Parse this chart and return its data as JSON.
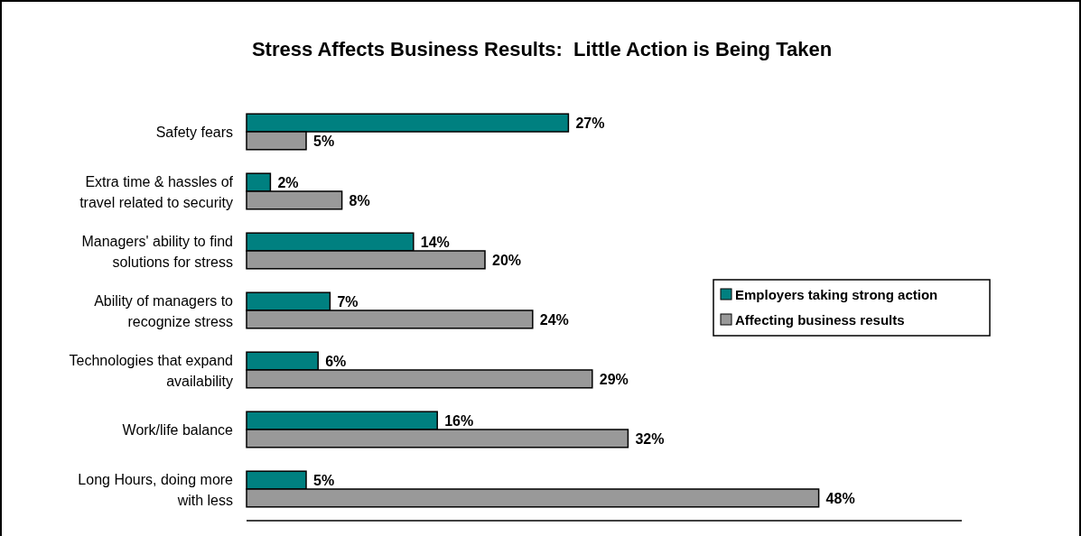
{
  "chart_data": {
    "type": "bar",
    "orientation": "horizontal",
    "title": "Stress Affects Business Results:  Little Action is Being Taken",
    "categories": [
      "Safety fears",
      "Extra time & hassles of travel related to security",
      "Managers' ability to find solutions for stress",
      "Ability of managers to recognize stress",
      "Technologies that expand availability",
      "Work/life balance",
      "Long Hours, doing more with less"
    ],
    "series": [
      {
        "name": "Employers taking strong action",
        "color": "#008080",
        "values": [
          27,
          2,
          14,
          7,
          6,
          16,
          5
        ],
        "value_labels": [
          "27%",
          "2%",
          "14%",
          "7%",
          "6%",
          "16%",
          "5%"
        ]
      },
      {
        "name": "Affecting business results",
        "color": "#999999",
        "values": [
          5,
          8,
          20,
          24,
          29,
          32,
          48
        ],
        "value_labels": [
          "5%",
          "8%",
          "20%",
          "24%",
          "29%",
          "32%",
          "48%"
        ]
      }
    ],
    "xlim": [
      0,
      60
    ],
    "legend": "right"
  }
}
